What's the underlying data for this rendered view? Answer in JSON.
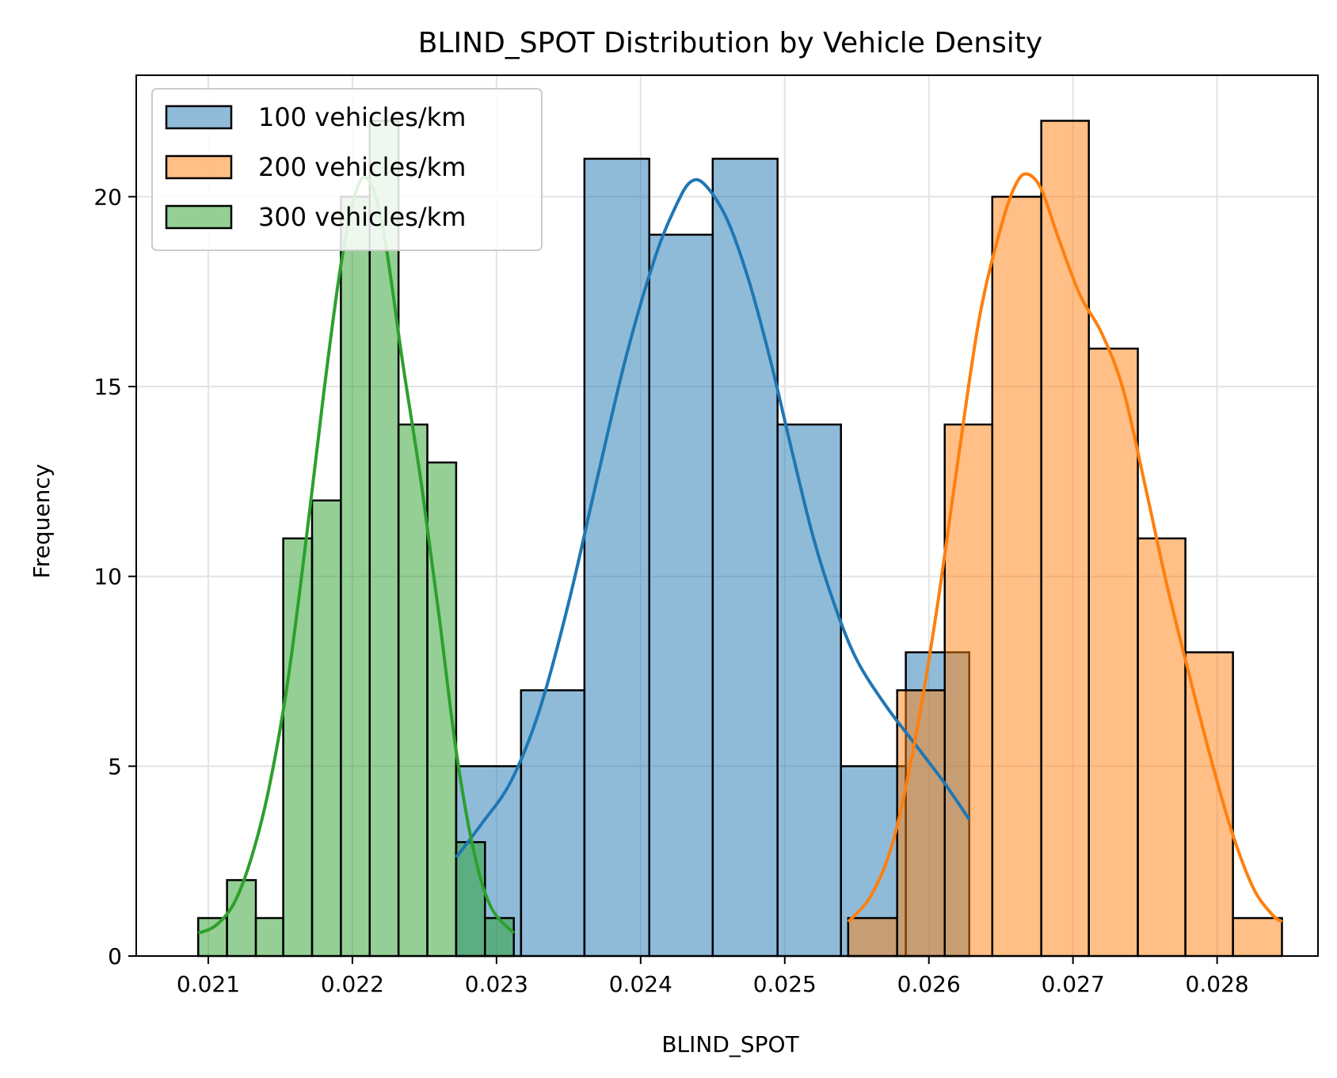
{
  "chart_data": {
    "type": "bar",
    "subtype": "overlaid histogram with KDE curves",
    "title": "BLIND_SPOT Distribution by Vehicle Density",
    "xlabel": "BLIND_SPOT",
    "ylabel": "Frequency",
    "xlim": [
      0.0205,
      0.0287
    ],
    "ylim": [
      0,
      23.2
    ],
    "x_ticks": [
      0.021,
      0.022,
      0.023,
      0.024,
      0.025,
      0.026,
      0.027,
      0.028
    ],
    "x_tick_labels": [
      "0.021",
      "0.022",
      "0.023",
      "0.024",
      "0.025",
      "0.026",
      "0.027",
      "0.028"
    ],
    "y_ticks": [
      0,
      5,
      10,
      15,
      20
    ],
    "y_tick_labels": [
      "0",
      "5",
      "10",
      "15",
      "20"
    ],
    "grid": true,
    "legend_position": "top-left",
    "series": [
      {
        "name": "100 vehicles/km",
        "color": "#1f77b4",
        "bin_edges": [
          0.02272,
          0.02317,
          0.02361,
          0.02406,
          0.0245,
          0.02495,
          0.02539,
          0.02584,
          0.02628
        ],
        "counts": [
          5,
          7,
          21,
          19,
          21,
          14,
          5,
          8
        ],
        "kde": [
          [
            0.02272,
            2.6
          ],
          [
            0.0229,
            3.5
          ],
          [
            0.0231,
            4.6
          ],
          [
            0.0233,
            6.5
          ],
          [
            0.0235,
            9.3
          ],
          [
            0.0237,
            12.6
          ],
          [
            0.0239,
            15.8
          ],
          [
            0.0241,
            18.4
          ],
          [
            0.02425,
            19.8
          ],
          [
            0.02435,
            20.4
          ],
          [
            0.02445,
            20.3
          ],
          [
            0.0246,
            19.4
          ],
          [
            0.02475,
            17.8
          ],
          [
            0.0249,
            15.7
          ],
          [
            0.02505,
            13.3
          ],
          [
            0.0252,
            11.0
          ],
          [
            0.02535,
            9.2
          ],
          [
            0.0255,
            7.8
          ],
          [
            0.0257,
            6.6
          ],
          [
            0.0259,
            5.6
          ],
          [
            0.0261,
            4.6
          ],
          [
            0.02628,
            3.6
          ]
        ]
      },
      {
        "name": "200 vehicles/km",
        "color": "#ff7f0e",
        "bin_edges": [
          0.02544,
          0.02578,
          0.02611,
          0.02644,
          0.02678,
          0.02711,
          0.02745,
          0.02778,
          0.02811,
          0.02845
        ],
        "counts": [
          1,
          7,
          14,
          20,
          22,
          16,
          11,
          8,
          1
        ],
        "kde": [
          [
            0.02544,
            0.9
          ],
          [
            0.0256,
            1.6
          ],
          [
            0.02575,
            3.0
          ],
          [
            0.0259,
            5.6
          ],
          [
            0.02605,
            9.0
          ],
          [
            0.0262,
            13.0
          ],
          [
            0.02635,
            16.8
          ],
          [
            0.0265,
            19.2
          ],
          [
            0.0266,
            20.3
          ],
          [
            0.02668,
            20.6
          ],
          [
            0.02678,
            20.2
          ],
          [
            0.0269,
            18.9
          ],
          [
            0.02705,
            17.4
          ],
          [
            0.0272,
            16.4
          ],
          [
            0.02735,
            14.9
          ],
          [
            0.0275,
            12.4
          ],
          [
            0.02765,
            9.8
          ],
          [
            0.0278,
            7.5
          ],
          [
            0.02795,
            5.3
          ],
          [
            0.0281,
            3.3
          ],
          [
            0.02825,
            1.8
          ],
          [
            0.02838,
            1.1
          ],
          [
            0.02845,
            0.9
          ]
        ]
      },
      {
        "name": "300 vehicles/km",
        "color": "#2ca02c",
        "bin_edges": [
          0.02093,
          0.02113,
          0.02133,
          0.02152,
          0.02172,
          0.02192,
          0.02212,
          0.02232,
          0.02252,
          0.02272,
          0.02292,
          0.02312
        ],
        "counts": [
          1,
          2,
          1,
          11,
          12,
          20,
          22,
          14,
          13,
          3,
          1
        ],
        "kde": [
          [
            0.02093,
            0.6
          ],
          [
            0.02105,
            0.8
          ],
          [
            0.02118,
            1.4
          ],
          [
            0.0213,
            2.6
          ],
          [
            0.02142,
            4.4
          ],
          [
            0.02155,
            7.2
          ],
          [
            0.02168,
            11.0
          ],
          [
            0.0218,
            14.8
          ],
          [
            0.02192,
            18.2
          ],
          [
            0.02203,
            20.2
          ],
          [
            0.02212,
            20.4
          ],
          [
            0.02222,
            19.0
          ],
          [
            0.02235,
            15.6
          ],
          [
            0.02248,
            12.4
          ],
          [
            0.0226,
            9.0
          ],
          [
            0.02272,
            5.4
          ],
          [
            0.02284,
            2.8
          ],
          [
            0.02296,
            1.3
          ],
          [
            0.02312,
            0.6
          ]
        ]
      }
    ]
  }
}
